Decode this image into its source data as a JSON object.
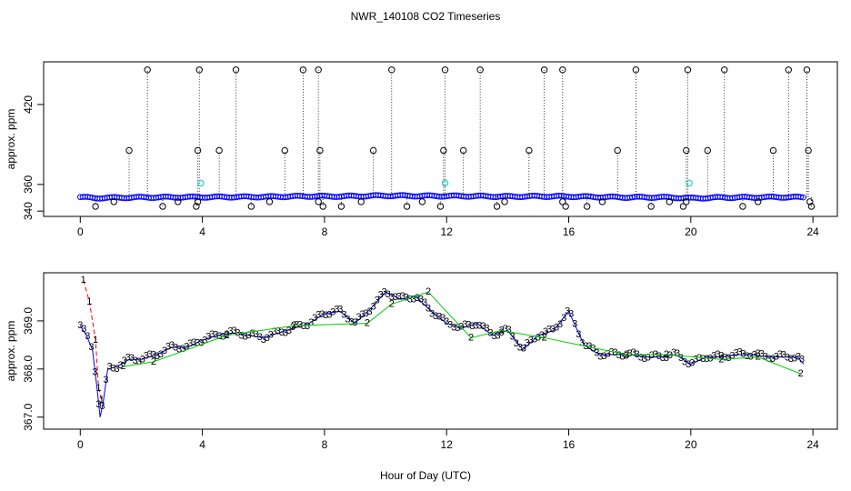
{
  "chart_data": [
    {
      "type": "scatter",
      "title": "NWR_140108  CO2 Timeseries",
      "xlabel": "",
      "ylabel": "approx. ppm",
      "xlim": [
        -1.2,
        24.8
      ],
      "ylim": [
        336,
        452
      ],
      "xticks": [
        0,
        4,
        8,
        12,
        16,
        20,
        24
      ],
      "yticks": [
        340,
        360,
        420
      ],
      "series": [
        {
          "color": "#0000ff",
          "marker": "circle",
          "baseline": [
            [
              0.0,
              350.5
            ],
            [
              0.5,
              349.8
            ],
            [
              1.0,
              350.0
            ],
            [
              2.0,
              350.3
            ],
            [
              3.0,
              350.4
            ],
            [
              4.0,
              350.5
            ],
            [
              5.0,
              350.6
            ],
            [
              6.0,
              350.7
            ],
            [
              7.0,
              351.0
            ],
            [
              7.8,
              351.2
            ],
            [
              8.0,
              351.0
            ],
            [
              9.0,
              351.2
            ],
            [
              10.0,
              351.6
            ],
            [
              11.0,
              351.4
            ],
            [
              12.0,
              351.3
            ],
            [
              13.0,
              351.2
            ],
            [
              14.0,
              350.9
            ],
            [
              15.0,
              351.1
            ],
            [
              16.0,
              351.0
            ],
            [
              17.0,
              350.6
            ],
            [
              18.0,
              350.3
            ],
            [
              19.0,
              350.4
            ],
            [
              19.9,
              349.9
            ],
            [
              20.0,
              349.6
            ],
            [
              21.0,
              350.2
            ],
            [
              22.0,
              350.3
            ],
            [
              23.0,
              350.5
            ],
            [
              23.7,
              350.3
            ]
          ]
        },
        {
          "color": "#00cdcd",
          "marker": "circle",
          "points": [
            [
              3.95,
              361.0
            ],
            [
              11.95,
              361.0
            ],
            [
              19.95,
              361.0
            ]
          ]
        },
        {
          "color": "#000000",
          "marker": "circle",
          "high": [
            [
              2.2,
              446
            ],
            [
              3.9,
              446
            ],
            [
              5.1,
              446
            ],
            [
              7.3,
              446
            ],
            [
              7.8,
              446
            ],
            [
              10.2,
              446
            ],
            [
              11.95,
              446
            ],
            [
              13.1,
              446
            ],
            [
              15.2,
              446
            ],
            [
              15.8,
              446
            ],
            [
              18.2,
              446
            ],
            [
              19.9,
              446
            ],
            [
              21.1,
              446
            ],
            [
              23.2,
              446
            ],
            [
              23.8,
              446
            ]
          ],
          "mid": [
            [
              1.6,
              385.5
            ],
            [
              3.85,
              385.5
            ],
            [
              4.55,
              385.5
            ],
            [
              6.7,
              385.5
            ],
            [
              7.85,
              385.5
            ],
            [
              9.6,
              385.5
            ],
            [
              11.9,
              385.5
            ],
            [
              12.55,
              385.5
            ],
            [
              14.7,
              385.5
            ],
            [
              17.6,
              385.5
            ],
            [
              19.85,
              385.5
            ],
            [
              20.55,
              385.5
            ],
            [
              22.7,
              385.5
            ],
            [
              23.85,
              385.5
            ]
          ],
          "low": [
            [
              0.5,
              343.5
            ],
            [
              2.7,
              343.5
            ],
            [
              3.8,
              343.5
            ],
            [
              5.6,
              343.5
            ],
            [
              7.95,
              343.5
            ],
            [
              8.55,
              343.5
            ],
            [
              10.7,
              343.5
            ],
            [
              11.8,
              343.5
            ],
            [
              13.65,
              343.5
            ],
            [
              15.9,
              343.5
            ],
            [
              16.6,
              343.5
            ],
            [
              18.7,
              343.5
            ],
            [
              19.75,
              343.5
            ],
            [
              21.7,
              343.5
            ],
            [
              23.95,
              343.5
            ]
          ],
          "dips": [
            [
              1.1,
              347.0
            ],
            [
              3.2,
              347.0
            ],
            [
              3.85,
              347.0
            ],
            [
              6.2,
              347.0
            ],
            [
              7.8,
              347.0
            ],
            [
              9.2,
              347.0
            ],
            [
              11.2,
              347.0
            ],
            [
              13.9,
              347.0
            ],
            [
              15.8,
              347.0
            ],
            [
              17.1,
              347.0
            ],
            [
              19.3,
              347.0
            ],
            [
              19.85,
              347.0
            ],
            [
              22.2,
              347.0
            ],
            [
              23.9,
              347.0
            ]
          ]
        }
      ]
    },
    {
      "type": "line",
      "title": "",
      "xlabel": "Hour of Day (UTC)",
      "ylabel": "approx. ppm",
      "xlim": [
        -1.2,
        24.8
      ],
      "ylim": [
        366.75,
        370.0
      ],
      "xticks": [
        0,
        4,
        8,
        12,
        16,
        20,
        24
      ],
      "yticks": [
        367.0,
        368.0,
        369.0
      ],
      "series": [
        {
          "label": "1",
          "color": "#ff0000",
          "style": "dashed",
          "x": [
            0.1,
            0.3,
            0.5,
            0.6,
            0.7
          ],
          "y": [
            369.85,
            369.4,
            368.6,
            367.6,
            367.35
          ]
        },
        {
          "label": "3",
          "color": "#0000ff",
          "style": "solid",
          "x": [
            0.0,
            0.2,
            0.4,
            0.55,
            0.65,
            0.75,
            0.9,
            1.2,
            1.6,
            2.0,
            2.5,
            3.0,
            3.5,
            4.0,
            4.5,
            5.0,
            5.5,
            6.0,
            6.5,
            7.0,
            7.5,
            8.0,
            8.5,
            9.0,
            9.5,
            10.0,
            10.5,
            11.0,
            11.5,
            12.0,
            12.5,
            13.0,
            13.5,
            14.0,
            14.5,
            15.0,
            15.5,
            16.0,
            16.5,
            17.0,
            17.5,
            18.0,
            18.5,
            19.0,
            19.5,
            20.0,
            20.5,
            21.0,
            21.5,
            22.0,
            22.5,
            23.0,
            23.5,
            23.7
          ],
          "y": [
            368.9,
            368.7,
            368.4,
            367.6,
            367.0,
            367.3,
            368.0,
            368.05,
            368.2,
            368.2,
            368.3,
            368.45,
            368.45,
            368.6,
            368.7,
            368.75,
            368.7,
            368.65,
            368.75,
            368.85,
            368.95,
            369.15,
            369.2,
            368.95,
            369.25,
            369.6,
            369.45,
            369.5,
            369.2,
            368.95,
            368.85,
            368.95,
            368.7,
            368.8,
            368.4,
            368.7,
            368.8,
            369.2,
            368.5,
            368.3,
            368.3,
            368.3,
            368.25,
            368.25,
            368.3,
            368.1,
            368.25,
            368.25,
            368.3,
            368.3,
            368.25,
            368.25,
            368.25,
            368.1
          ]
        },
        {
          "label": "2",
          "color": "#00cd00",
          "style": "solid",
          "x": [
            1.4,
            2.4,
            4.8,
            7.0,
            9.4,
            10.2,
            11.4,
            12.8,
            13.8,
            15.2,
            17.9,
            19.2,
            21.0,
            22.2,
            23.6
          ],
          "y": [
            368.05,
            368.15,
            368.7,
            368.9,
            368.95,
            369.35,
            369.6,
            368.65,
            368.8,
            368.65,
            368.3,
            368.3,
            368.2,
            368.25,
            367.9
          ]
        }
      ]
    }
  ]
}
